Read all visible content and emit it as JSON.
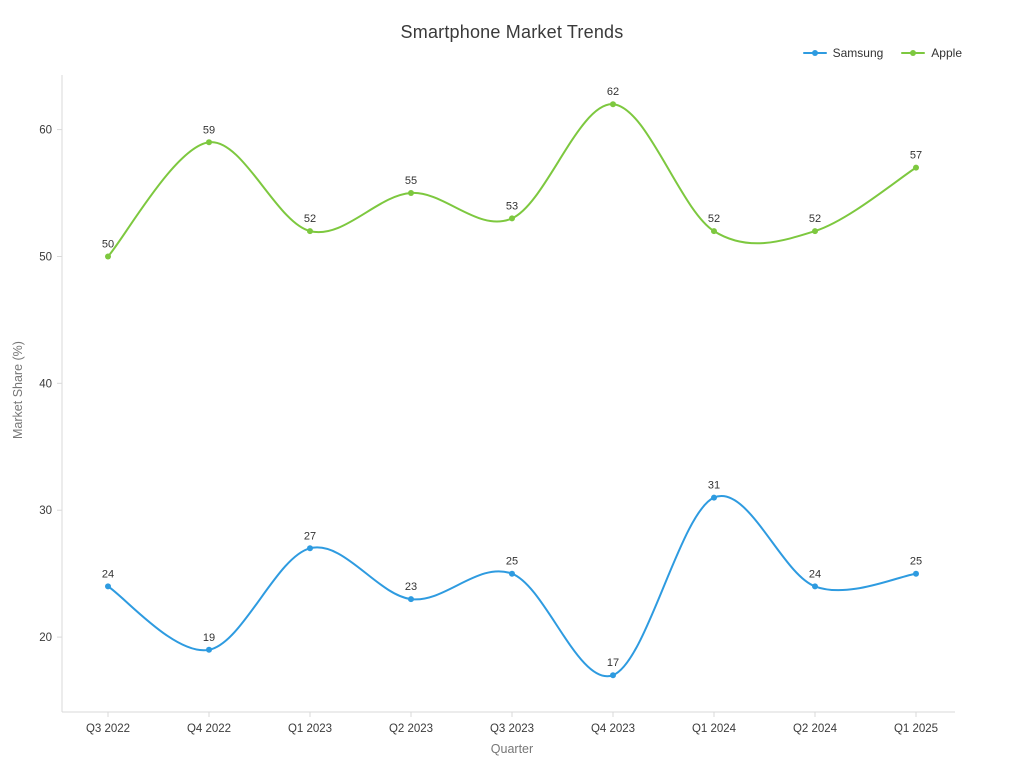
{
  "chart_data": {
    "type": "line",
    "title": "Smartphone Market Trends",
    "xlabel": "Quarter",
    "ylabel": "Market Share (%)",
    "categories": [
      "Q3 2022",
      "Q4 2022",
      "Q1 2023",
      "Q2 2023",
      "Q3 2023",
      "Q4 2023",
      "Q1 2024",
      "Q2 2024",
      "Q1 2025"
    ],
    "series": [
      {
        "name": "Samsung",
        "color": "#2E9BE0",
        "values": [
          24,
          19,
          27,
          23,
          25,
          17,
          31,
          24,
          25
        ]
      },
      {
        "name": "Apple",
        "color": "#7DC83F",
        "values": [
          50,
          59,
          52,
          55,
          53,
          62,
          52,
          52,
          57
        ]
      }
    ],
    "yticks": [
      20,
      30,
      40,
      50,
      60
    ],
    "ylim": [
      14.1,
      64.3
    ],
    "grid": false,
    "legend_position": "top-right",
    "line_shape": "spline",
    "axis_color": "#d9d9d9",
    "tick_color": "#3b3b3b",
    "data_label_color": "#333333",
    "axis_title_color": "#777777"
  }
}
